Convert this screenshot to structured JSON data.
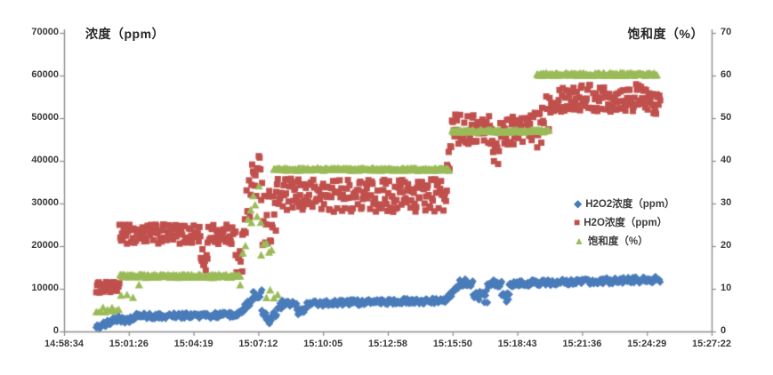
{
  "chart_data": {
    "type": "scatter",
    "title": "",
    "left_axis": {
      "title": "浓度（ppm）",
      "min": 0,
      "max": 70000,
      "tick_step": 10000,
      "tick_labels": [
        "0",
        "10000",
        "20000",
        "30000",
        "40000",
        "50000",
        "60000",
        "70000"
      ]
    },
    "right_axis": {
      "title": "饱和度（%）",
      "min": 0,
      "max": 70,
      "tick_step": 10,
      "tick_labels": [
        "0",
        "10",
        "20",
        "30",
        "40",
        "50",
        "60",
        "70"
      ]
    },
    "x_axis": {
      "tick_labels": [
        "14:58:34",
        "15:01:26",
        "15:04:19",
        "15:07:12",
        "15:10:05",
        "15:12:58",
        "15:15:50",
        "15:18:43",
        "15:21:36",
        "15:24:29",
        "15:27:22"
      ],
      "min_seconds": 0,
      "max_seconds": 1728,
      "grid": "off"
    },
    "legend": {
      "position": "middle-right",
      "items": [
        {
          "label": "H2O2浓度（ppm）",
          "marker": "diamond",
          "color": "#4a7cba"
        },
        {
          "label": "H2O浓度（ppm）",
          "marker": "square",
          "color": "#c0504d"
        },
        {
          "label": "饱和度（%）",
          "marker": "triangle",
          "color": "#9bbb59"
        }
      ]
    },
    "series": [
      {
        "name": "H2O浓度（ppm）",
        "axis": "left",
        "marker": "square",
        "color": "#c0504d",
        "dt": 2.2,
        "segments": [
          [
            86,
            148,
            10300,
            10300,
            1300
          ],
          [
            148,
            365,
            22800,
            22800,
            2300
          ],
          [
            365,
            383,
            16500,
            16500,
            2900
          ],
          [
            383,
            458,
            22800,
            22800,
            2300
          ],
          [
            458,
            476,
            15800,
            15800,
            3800
          ],
          [
            476,
            502,
            25000,
            33500,
            5500
          ],
          [
            502,
            530,
            36200,
            36200,
            5600
          ],
          [
            530,
            566,
            27000,
            27000,
            6800
          ],
          [
            566,
            1022,
            31900,
            31900,
            3900
          ],
          [
            1022,
            1046,
            36000,
            52500,
            5200
          ],
          [
            1046,
            1145,
            47300,
            47300,
            3500
          ],
          [
            1145,
            1162,
            42000,
            42000,
            2800
          ],
          [
            1162,
            1256,
            47300,
            47300,
            3500
          ],
          [
            1256,
            1300,
            46500,
            53500,
            5200
          ],
          [
            1300,
            1560,
            54800,
            54800,
            3300
          ],
          [
            1560,
            1591,
            53600,
            53600,
            2600
          ]
        ]
      },
      {
        "name": "饱和度（%）",
        "axis": "right",
        "marker": "triangle",
        "color": "#9bbb59",
        "dt": 2.5,
        "segments": [
          [
            86,
            150,
            5.0,
            5.0,
            0.8,
            6
          ],
          [
            152,
            200,
            8.5,
            10.5,
            2.2,
            16
          ],
          [
            150,
            470,
            12.9,
            12.9,
            0.35
          ],
          [
            470,
            500,
            15,
            26,
            4.5,
            7
          ],
          [
            500,
            526,
            29.5,
            29.5,
            4.5,
            5
          ],
          [
            526,
            554,
            19,
            19,
            5.5,
            7
          ],
          [
            540,
            570,
            9,
            9,
            2.5,
            10
          ],
          [
            560,
            1028,
            37.9,
            37.9,
            0.3
          ],
          [
            1036,
            1295,
            46.9,
            46.9,
            0.3
          ],
          [
            1262,
            1582,
            60.2,
            60.2,
            0.35
          ]
        ]
      },
      {
        "name": "H2O2浓度（ppm）",
        "axis": "left",
        "marker": "diamond",
        "color": "#4a7cba",
        "dt": 2.5,
        "segments": [
          [
            86,
            150,
            900,
            3200,
            700
          ],
          [
            150,
            186,
            2300,
            3300,
            900
          ],
          [
            186,
            465,
            3600,
            3850,
            650
          ],
          [
            465,
            505,
            4300,
            7600,
            800
          ],
          [
            505,
            528,
            8800,
            8800,
            1100
          ],
          [
            528,
            552,
            5800,
            1900,
            1400
          ],
          [
            552,
            580,
            2600,
            6300,
            900
          ],
          [
            580,
            622,
            6600,
            6600,
            700
          ],
          [
            622,
            648,
            4700,
            4700,
            900
          ],
          [
            648,
            1026,
            6500,
            7300,
            650
          ],
          [
            1026,
            1058,
            7900,
            11800,
            900
          ],
          [
            1058,
            1092,
            11500,
            11500,
            900
          ],
          [
            1092,
            1130,
            8300,
            8300,
            1600
          ],
          [
            1130,
            1168,
            11200,
            11200,
            800
          ],
          [
            1168,
            1188,
            7700,
            7700,
            1300
          ],
          [
            1188,
            1591,
            11200,
            12200,
            700
          ]
        ]
      }
    ],
    "colors": {
      "h2o2": "#4a7cba",
      "h2o": "#c0504d",
      "saturation": "#9bbb59",
      "axis_line": "#8c8c8c",
      "text": "#3a3a3a"
    }
  }
}
